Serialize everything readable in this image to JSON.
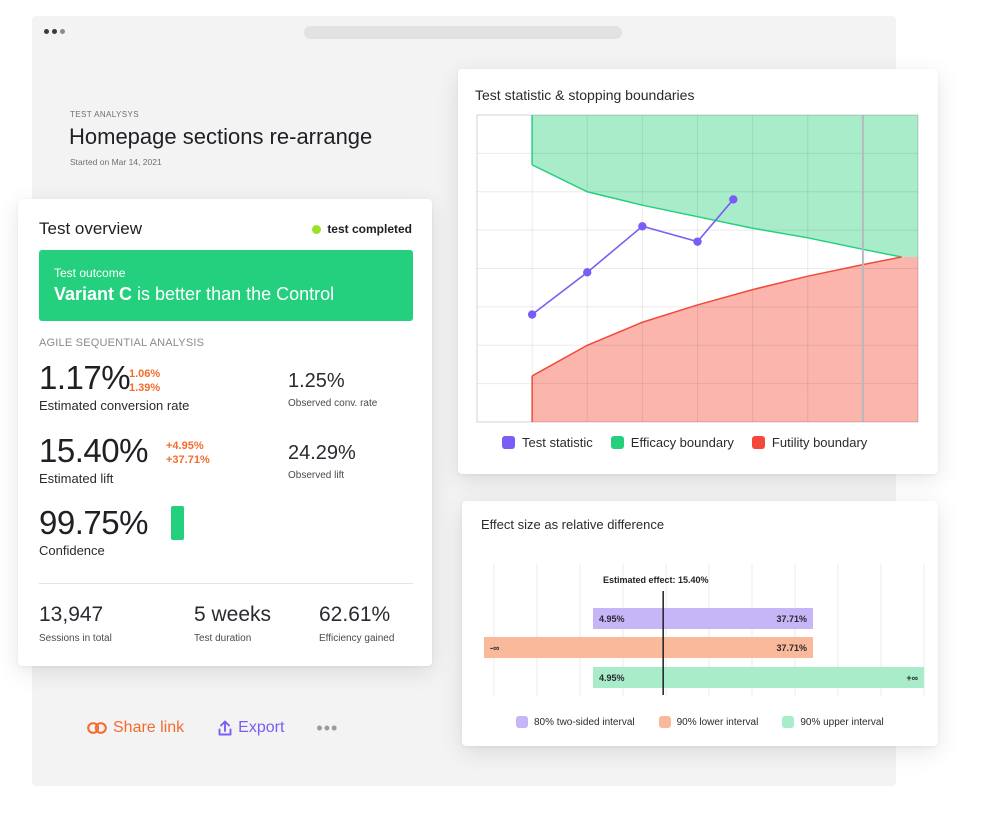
{
  "page": {
    "eyebrow": "TEST ANALYSYS",
    "title": "Homepage sections re-arrange",
    "subtitle": "Started on Mar 14, 2021"
  },
  "overview": {
    "title": "Test overview",
    "status": "test completed",
    "outcome_label": "Test outcome",
    "outcome_variant": "Variant C",
    "outcome_rest": " is better than the Control",
    "section_label": "AGILE SEQUENTIAL ANALYSIS",
    "conv_rate": "1.17%",
    "conv_rate_delta_1": "1.06%",
    "conv_rate_delta_2": "1.39%",
    "conv_rate_caption": "Estimated conversion rate",
    "observed_conv": "1.25%",
    "observed_conv_caption": "Observed conv. rate",
    "lift": "15.40%",
    "lift_delta_1": "+4.95%",
    "lift_delta_2": "+37.71%",
    "lift_caption": "Estimated lift",
    "observed_lift": "24.29%",
    "observed_lift_caption": "Observed lift",
    "confidence": "99.75%",
    "confidence_caption": "Confidence",
    "sessions": "13,947",
    "sessions_caption": "Sessions in total",
    "duration": "5 weeks",
    "duration_caption": "Test duration",
    "efficiency": "62.61%",
    "efficiency_caption": "Efficiency gained"
  },
  "actions": {
    "share": "Share link",
    "export": "Export",
    "more": "•••"
  },
  "colors": {
    "green": "#24d07e",
    "orange": "#f46b2e",
    "purple": "#7b5cf5",
    "efficacy_fill": "#a8ecca",
    "futility_fill": "#fbb5ad",
    "futility_line": "#f2493b",
    "interval_80": "#c6b5f7",
    "interval_lower": "#f9b99a",
    "interval_upper": "#a8ecca"
  },
  "chart_data": [
    {
      "type": "line",
      "title": "Test statistic & stopping boundaries",
      "x": [
        1,
        2,
        3,
        4,
        5,
        6,
        7,
        8
      ],
      "xlim": [
        0,
        8
      ],
      "ylim": [
        0,
        8
      ],
      "grid": true,
      "legend_position": "bottom",
      "series": [
        {
          "name": "Test statistic",
          "color": "#7b5cf5",
          "x": [
            1,
            2,
            3,
            4,
            4.65
          ],
          "values": [
            2.8,
            3.9,
            5.1,
            4.7,
            5.8
          ]
        },
        {
          "name": "Efficacy boundary",
          "color": "#24d07e",
          "x": [
            1,
            2,
            3,
            4,
            5,
            6,
            7,
            7.7
          ],
          "values": [
            6.7,
            6.0,
            5.65,
            5.35,
            5.05,
            4.8,
            4.5,
            4.3
          ]
        },
        {
          "name": "Futility boundary",
          "color": "#f2493b",
          "x": [
            1,
            2,
            3,
            4,
            5,
            6,
            7,
            7.7
          ],
          "values": [
            1.2,
            2.0,
            2.6,
            3.05,
            3.45,
            3.8,
            4.1,
            4.3
          ]
        }
      ],
      "current_marker_x": 7
    },
    {
      "type": "bar",
      "title": "Effect size as relative difference",
      "annotation": "Estimated effect: 15.40%",
      "estimated_effect": 15.4,
      "grid": true,
      "legend_position": "bottom",
      "series": [
        {
          "name": "80% two-sided interval",
          "color": "#c6b5f7",
          "low": 4.95,
          "high": 37.71,
          "low_label": "4.95%",
          "high_label": "37.71%"
        },
        {
          "name": "90% lower interval",
          "color": "#f9b99a",
          "low": null,
          "high": 37.71,
          "low_label": "-∞",
          "high_label": "37.71%"
        },
        {
          "name": "90% upper interval",
          "color": "#a8ecca",
          "low": 4.95,
          "high": null,
          "low_label": "4.95%",
          "high_label": "+∞"
        }
      ]
    }
  ]
}
